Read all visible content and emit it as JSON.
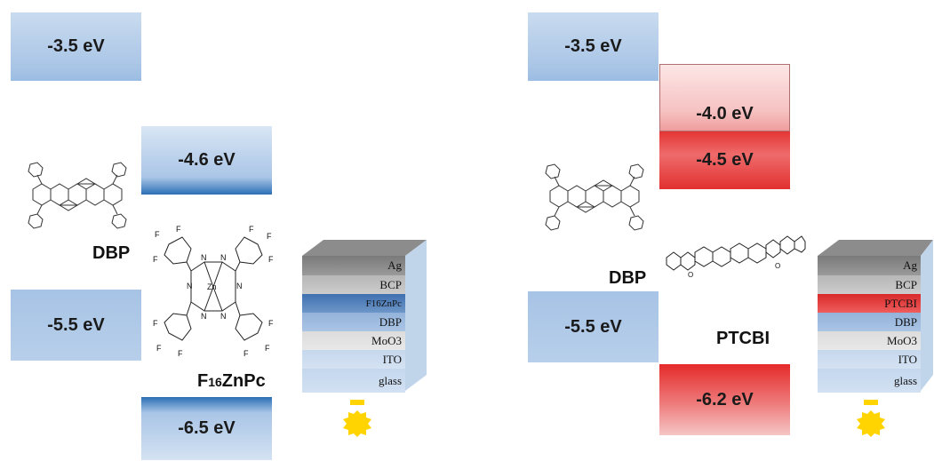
{
  "left_panel": {
    "levels": [
      "-3.5 eV",
      "-4.6 eV",
      "-5.5 eV",
      "-6.5 eV"
    ],
    "molecule_labels": [
      "DBP",
      "F16ZnPc"
    ],
    "stack_layers": [
      "Ag",
      "BCP",
      "F16ZnPc",
      "DBP",
      "MoO3",
      "ITO",
      "glass"
    ]
  },
  "right_panel": {
    "levels": [
      "-3.5 eV",
      "-4.0 eV",
      "-4.5 eV",
      "-5.5 eV",
      "-6.2 eV"
    ],
    "molecule_labels": [
      "DBP",
      "PTCBI"
    ],
    "stack_layers": [
      "Ag",
      "BCP",
      "PTCBI",
      "DBP",
      "MoO3",
      "ITO",
      "glass"
    ]
  },
  "colors": {
    "blue_level": "#a9c5e6",
    "dark_blue_edge": "#2b6fb5",
    "red_level": "#e23030",
    "pink_level": "#f6c2c2",
    "sun": "#ffd400"
  },
  "icons": [
    "sun-icon",
    "dbp-molecule",
    "f16znpc-molecule",
    "ptcbi-molecule"
  ]
}
